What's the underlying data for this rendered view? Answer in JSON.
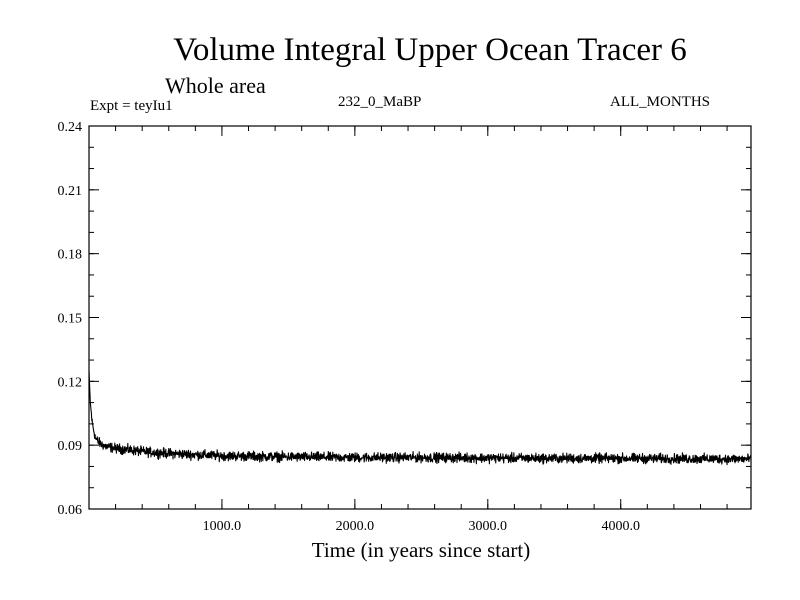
{
  "header": {
    "title": "Volume Integral Upper Ocean Tracer 6",
    "subtitle": "Whole area",
    "expt_label": "Expt = teyIu1",
    "run_label": "232_0_MaBP",
    "months_label": "ALL_MONTHS"
  },
  "chart_data": {
    "type": "line",
    "title": "Volume Integral Upper Ocean Tracer 6",
    "subtitle": "Whole area",
    "xlabel": "Time (in years since start)",
    "ylabel": "",
    "xlim": [
      0,
      4980
    ],
    "ylim": [
      0.06,
      0.24
    ],
    "x_ticks": [
      1000,
      2000,
      3000,
      4000
    ],
    "x_tick_labels": [
      "1000.0",
      "2000.0",
      "3000.0",
      "4000.0"
    ],
    "y_ticks": [
      0.06,
      0.09,
      0.12,
      0.15,
      0.18,
      0.21,
      0.24
    ],
    "y_tick_labels": [
      "0.06",
      "0.09",
      "0.12",
      "0.15",
      "0.18",
      "0.21",
      "0.24"
    ],
    "grid": false,
    "series": [
      {
        "color": "#000000",
        "x": [
          0,
          10,
          25,
          50,
          80,
          120,
          160,
          200,
          300,
          400,
          500,
          700,
          1000,
          1500,
          2000,
          2500,
          3000,
          3500,
          4000,
          4500,
          4980
        ],
        "y": [
          0.125,
          0.11,
          0.1,
          0.093,
          0.091,
          0.0895,
          0.089,
          0.0885,
          0.0878,
          0.087,
          0.0865,
          0.0858,
          0.085,
          0.0845,
          0.0842,
          0.0842,
          0.084,
          0.0838,
          0.0838,
          0.0836,
          0.0835
        ],
        "noise_amplitude": 0.0022
      }
    ]
  }
}
